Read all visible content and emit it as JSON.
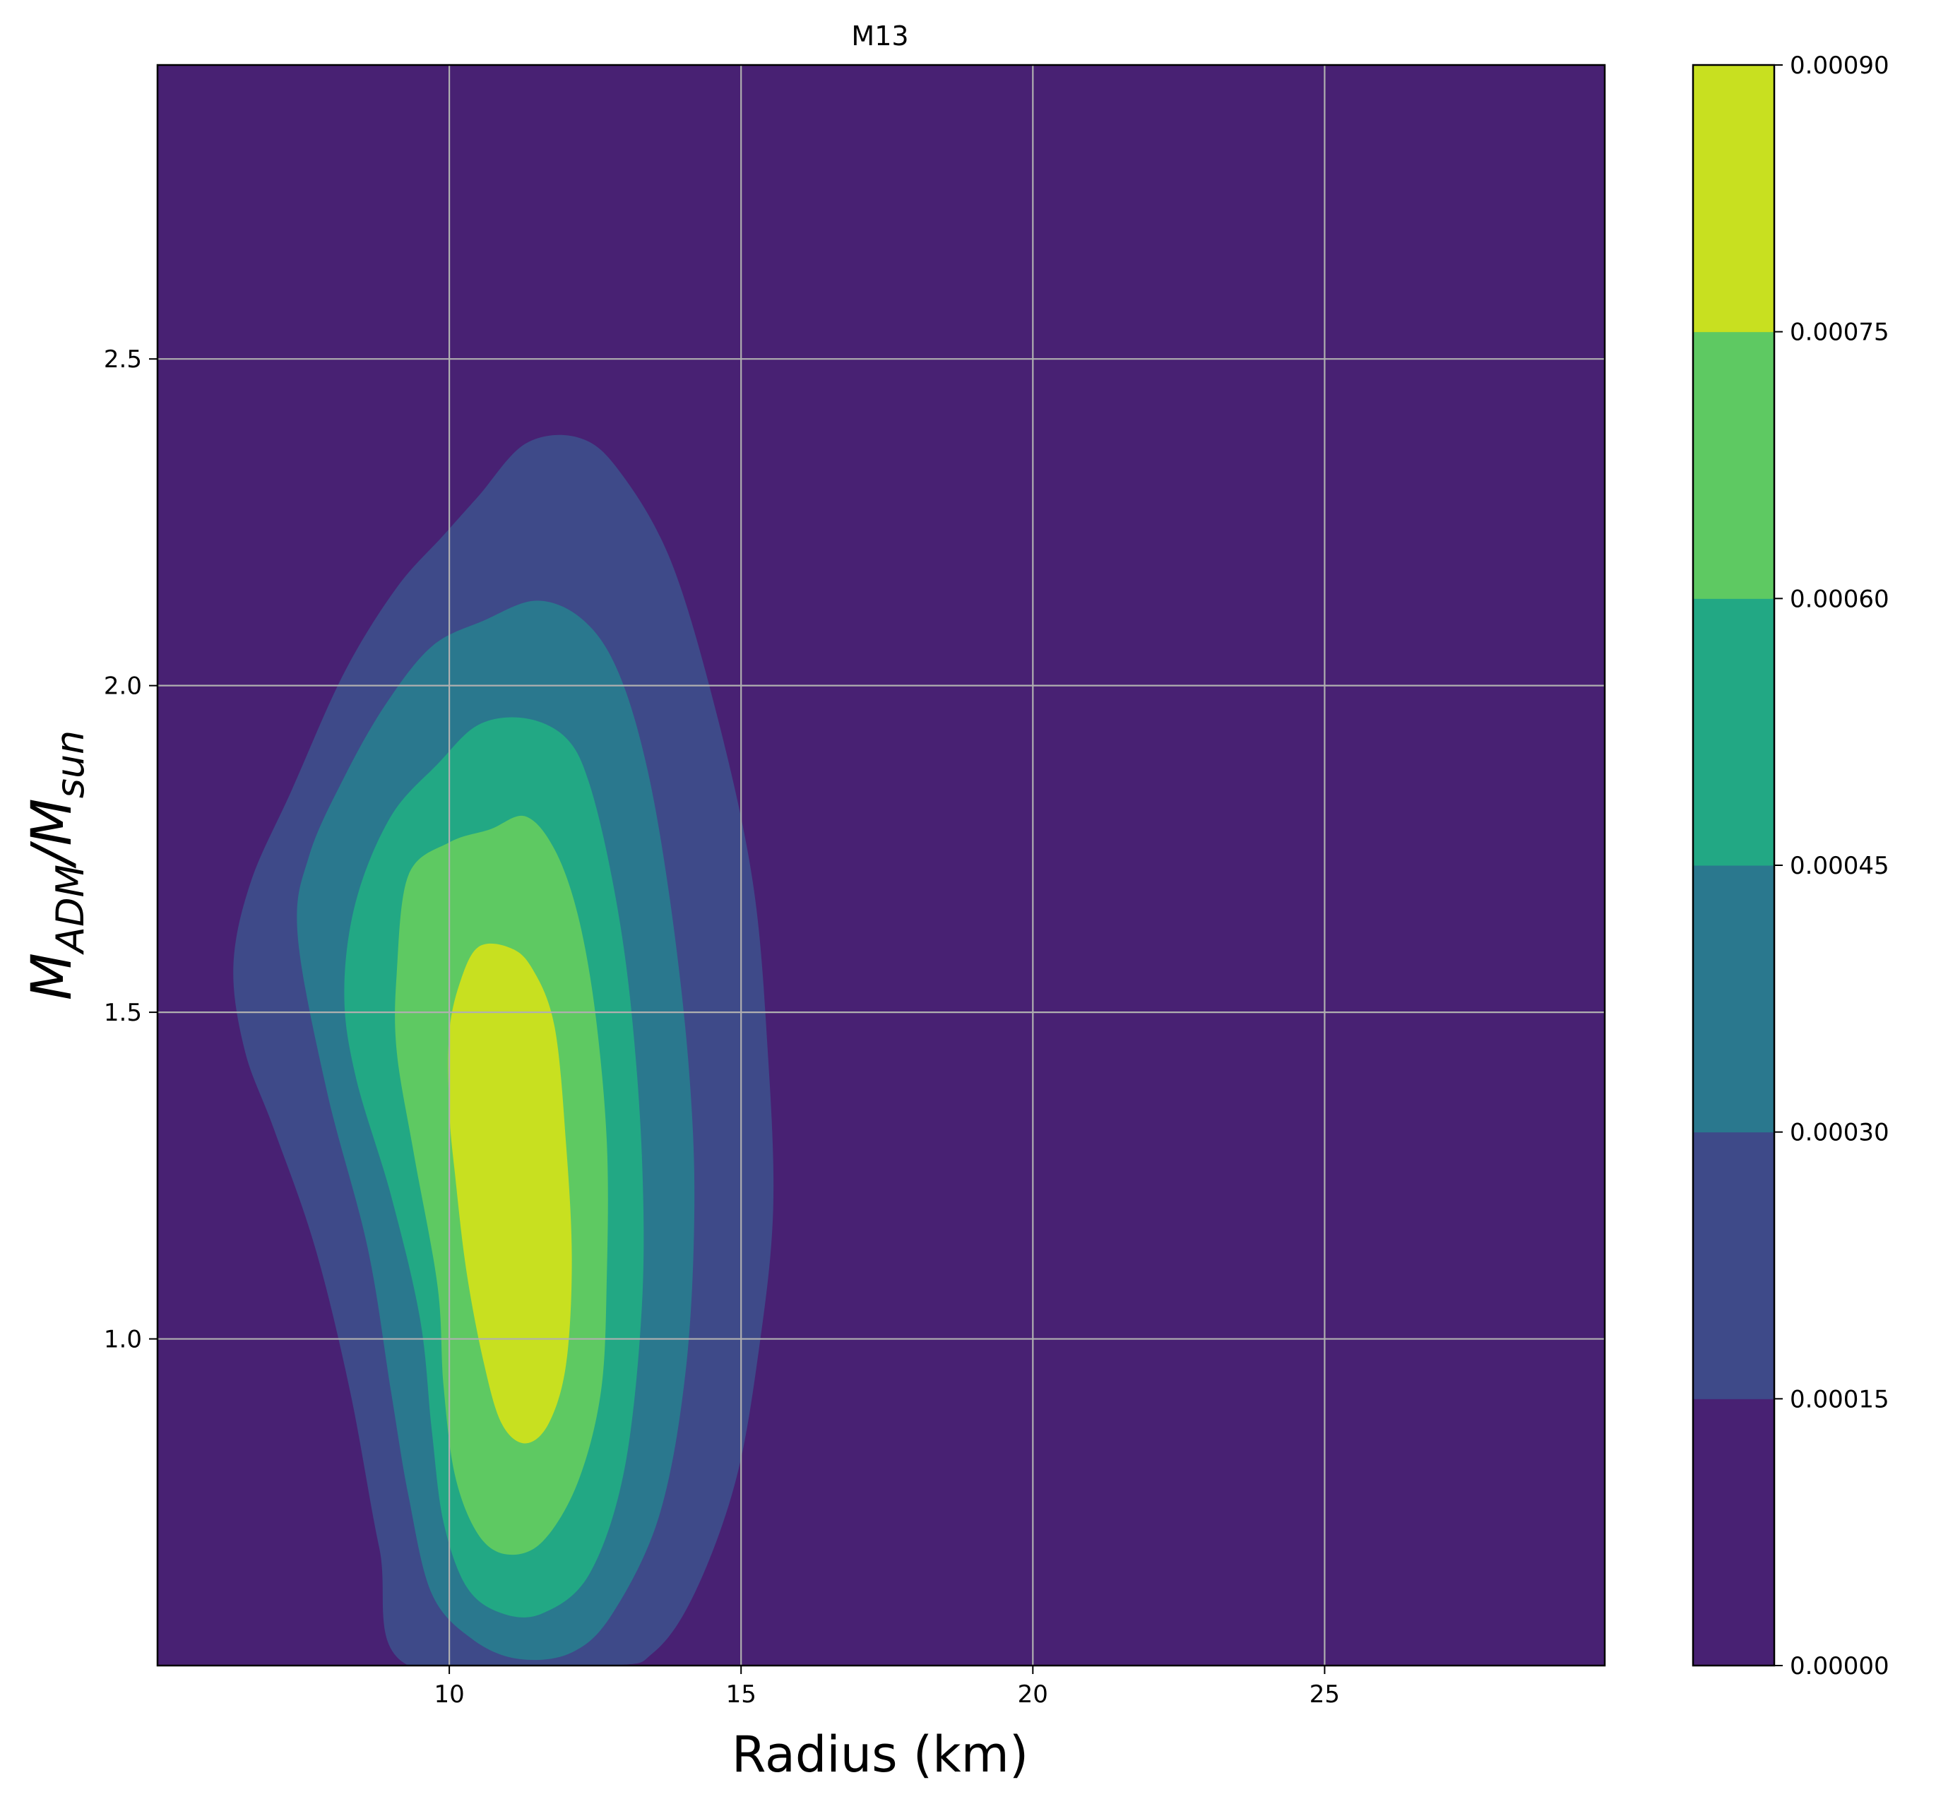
{
  "chart_data": {
    "type": "filled-contour",
    "title": "M13",
    "xlabel": "Radius (km)",
    "ylabel": {
      "base": "M",
      "sub1": "ADM",
      "sep": "/M",
      "sub2": "sun"
    },
    "xlim": [
      5,
      29.8
    ],
    "ylim": [
      0.5,
      2.95
    ],
    "xticks": [
      10,
      15,
      20,
      25
    ],
    "yticks": [
      1.0,
      1.5,
      2.0,
      2.5
    ],
    "xtick_labels": [
      "10",
      "15",
      "20",
      "25"
    ],
    "ytick_labels": [
      "1.0",
      "1.5",
      "2.0",
      "2.5"
    ],
    "grid": true,
    "colorbar": {
      "levels": [
        0.0,
        0.00015,
        0.0003,
        0.00045,
        0.0006,
        0.00075,
        0.0009
      ],
      "tick_labels": [
        "0.00000",
        "0.00015",
        "0.00030",
        "0.00045",
        "0.00060",
        "0.00075",
        "0.00090"
      ],
      "colors": [
        "#482173",
        "#3e4a89",
        "#2a788e",
        "#22a884",
        "#5ec962",
        "#c8e020"
      ]
    },
    "contours": [
      {
        "level": 0.00015,
        "color": "#3e4a89",
        "points": [
          [
            6.3,
            1.57
          ],
          [
            6.6,
            1.7
          ],
          [
            7.3,
            1.84
          ],
          [
            8.2,
            2.02
          ],
          [
            9.1,
            2.15
          ],
          [
            9.9,
            2.23
          ],
          [
            10.5,
            2.29
          ],
          [
            11.3,
            2.37
          ],
          [
            12.2,
            2.38
          ],
          [
            12.9,
            2.33
          ],
          [
            13.8,
            2.19
          ],
          [
            14.6,
            1.95
          ],
          [
            15.2,
            1.7
          ],
          [
            15.45,
            1.45
          ],
          [
            15.55,
            1.2
          ],
          [
            15.3,
            0.98
          ],
          [
            14.9,
            0.78
          ],
          [
            14.2,
            0.61
          ],
          [
            13.5,
            0.52
          ],
          [
            12.7,
            0.5
          ],
          [
            9.3,
            0.5
          ],
          [
            8.8,
            0.68
          ],
          [
            8.3,
            0.92
          ],
          [
            7.7,
            1.14
          ],
          [
            7.0,
            1.32
          ],
          [
            6.5,
            1.44
          ],
          [
            6.3,
            1.57
          ]
        ]
      },
      {
        "level": 0.0003,
        "color": "#2a788e",
        "points": [
          [
            7.4,
            1.62
          ],
          [
            7.6,
            1.74
          ],
          [
            8.2,
            1.86
          ],
          [
            8.9,
            1.97
          ],
          [
            9.7,
            2.06
          ],
          [
            10.6,
            2.1
          ],
          [
            11.5,
            2.13
          ],
          [
            12.3,
            2.1
          ],
          [
            12.9,
            2.02
          ],
          [
            13.4,
            1.87
          ],
          [
            13.8,
            1.66
          ],
          [
            14.1,
            1.42
          ],
          [
            14.2,
            1.2
          ],
          [
            14.05,
            0.95
          ],
          [
            13.6,
            0.73
          ],
          [
            12.8,
            0.58
          ],
          [
            12.1,
            0.52
          ],
          [
            11.2,
            0.51
          ],
          [
            10.4,
            0.54
          ],
          [
            9.7,
            0.61
          ],
          [
            9.3,
            0.76
          ],
          [
            9.0,
            0.92
          ],
          [
            8.6,
            1.14
          ],
          [
            7.9,
            1.38
          ],
          [
            7.4,
            1.62
          ]
        ]
      },
      {
        "level": 0.00045,
        "color": "#22a884",
        "points": [
          [
            8.2,
            1.53
          ],
          [
            8.4,
            1.67
          ],
          [
            9.0,
            1.8
          ],
          [
            9.8,
            1.88
          ],
          [
            10.5,
            1.94
          ],
          [
            11.3,
            1.95
          ],
          [
            12.0,
            1.92
          ],
          [
            12.4,
            1.85
          ],
          [
            12.8,
            1.7
          ],
          [
            13.1,
            1.52
          ],
          [
            13.3,
            1.28
          ],
          [
            13.3,
            1.05
          ],
          [
            13.0,
            0.8
          ],
          [
            12.4,
            0.64
          ],
          [
            11.6,
            0.58
          ],
          [
            10.9,
            0.58
          ],
          [
            10.3,
            0.62
          ],
          [
            9.9,
            0.72
          ],
          [
            9.7,
            0.86
          ],
          [
            9.5,
            1.03
          ],
          [
            9.0,
            1.22
          ],
          [
            8.4,
            1.4
          ],
          [
            8.2,
            1.53
          ]
        ]
      },
      {
        "level": 0.0006,
        "color": "#5ec962",
        "points": [
          [
            9.1,
            1.56
          ],
          [
            9.3,
            1.71
          ],
          [
            10.0,
            1.76
          ],
          [
            10.7,
            1.78
          ],
          [
            11.3,
            1.8
          ],
          [
            11.8,
            1.75
          ],
          [
            12.2,
            1.65
          ],
          [
            12.5,
            1.5
          ],
          [
            12.7,
            1.3
          ],
          [
            12.7,
            1.1
          ],
          [
            12.6,
            0.92
          ],
          [
            12.2,
            0.78
          ],
          [
            11.6,
            0.69
          ],
          [
            11.0,
            0.67
          ],
          [
            10.5,
            0.7
          ],
          [
            10.1,
            0.79
          ],
          [
            9.9,
            0.93
          ],
          [
            9.8,
            1.08
          ],
          [
            9.4,
            1.28
          ],
          [
            9.1,
            1.44
          ],
          [
            9.1,
            1.56
          ]
        ]
      },
      {
        "level": 0.00075,
        "color": "#c8e020",
        "points": [
          [
            10.0,
            1.47
          ],
          [
            10.2,
            1.55
          ],
          [
            10.5,
            1.6
          ],
          [
            11.0,
            1.6
          ],
          [
            11.4,
            1.57
          ],
          [
            11.8,
            1.48
          ],
          [
            12.0,
            1.3
          ],
          [
            12.1,
            1.12
          ],
          [
            12.0,
            0.96
          ],
          [
            11.7,
            0.87
          ],
          [
            11.3,
            0.84
          ],
          [
            10.9,
            0.87
          ],
          [
            10.6,
            0.96
          ],
          [
            10.3,
            1.1
          ],
          [
            10.1,
            1.25
          ],
          [
            10.0,
            1.35
          ],
          [
            10.0,
            1.47
          ]
        ]
      }
    ]
  }
}
